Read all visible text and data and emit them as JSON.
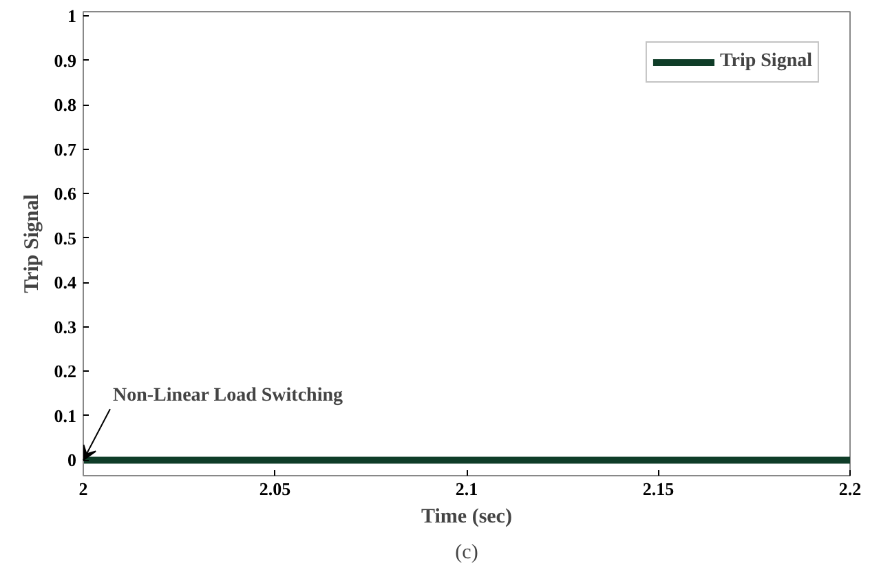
{
  "chart_data": {
    "type": "line",
    "xlabel": "Time (sec)",
    "ylabel": "Trip Signal",
    "x": [
      2,
      2.2
    ],
    "series": [
      {
        "name": "Trip Signal",
        "color": "#0f3d28",
        "values": [
          0,
          0
        ]
      }
    ],
    "xlim": [
      2,
      2.2
    ],
    "xticks": [
      2,
      2.05,
      2.1,
      2.15,
      2.2
    ],
    "ylim": [
      -0.035,
      1.01
    ],
    "yticks": [
      0,
      0.1,
      0.2,
      0.3,
      0.4,
      0.5,
      0.6,
      0.7,
      0.8,
      0.9,
      1
    ],
    "legend": "top right",
    "grid": false,
    "annotations": [
      {
        "text": "Non-Linear Load Switching",
        "x": 2,
        "y": 0
      },
      "(c)"
    ]
  }
}
